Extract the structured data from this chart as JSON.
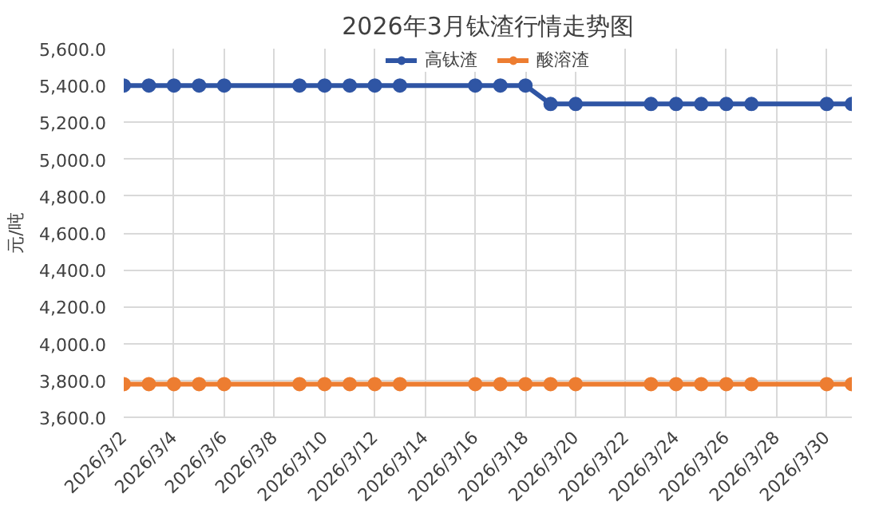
{
  "chart_data": {
    "type": "line",
    "title": "2026年3月钛渣行情走势图",
    "ylabel": "元/吨",
    "x": [
      "2026-03-02",
      "2026-03-03",
      "2026-03-04",
      "2026-03-05",
      "2026-03-06",
      "2026-03-09",
      "2026-03-10",
      "2026-03-11",
      "2026-03-12",
      "2026-03-13",
      "2026-03-16",
      "2026-03-17",
      "2026-03-18",
      "2026-03-19",
      "2026-03-20",
      "2026-03-23",
      "2026-03-24",
      "2026-03-25",
      "2026-03-26",
      "2026-03-27",
      "2026-03-30",
      "2026-03-31"
    ],
    "series": [
      {
        "name": "高钛渣",
        "color": "#2f55a4",
        "values": [
          5400,
          5400,
          5400,
          5400,
          5400,
          5400,
          5400,
          5400,
          5400,
          5400,
          5400,
          5400,
          5400,
          5300,
          5300,
          5300,
          5300,
          5300,
          5300,
          5300,
          5300,
          5300
        ]
      },
      {
        "name": "酸溶渣",
        "color": "#ed7d31",
        "values": [
          3780,
          3780,
          3780,
          3780,
          3780,
          3780,
          3780,
          3780,
          3780,
          3780,
          3780,
          3780,
          3780,
          3780,
          3780,
          3780,
          3780,
          3780,
          3780,
          3780,
          3780,
          3780
        ]
      }
    ],
    "xlim": [
      "2026-03-02",
      "2026-03-31"
    ],
    "xticks": [
      {
        "value": "2026-03-02",
        "label": "2026/3/2"
      },
      {
        "value": "2026-03-04",
        "label": "2026/3/4"
      },
      {
        "value": "2026-03-06",
        "label": "2026/3/6"
      },
      {
        "value": "2026-03-08",
        "label": "2026/3/8"
      },
      {
        "value": "2026-03-10",
        "label": "2026/3/10"
      },
      {
        "value": "2026-03-12",
        "label": "2026/3/12"
      },
      {
        "value": "2026-03-14",
        "label": "2026/3/14"
      },
      {
        "value": "2026-03-16",
        "label": "2026/3/16"
      },
      {
        "value": "2026-03-18",
        "label": "2026/3/18"
      },
      {
        "value": "2026-03-20",
        "label": "2026/3/20"
      },
      {
        "value": "2026-03-22",
        "label": "2026/3/22"
      },
      {
        "value": "2026-03-24",
        "label": "2026/3/24"
      },
      {
        "value": "2026-03-26",
        "label": "2026/3/26"
      },
      {
        "value": "2026-03-28",
        "label": "2026/3/28"
      },
      {
        "value": "2026-03-30",
        "label": "2026/3/30"
      }
    ],
    "ylim": [
      3600,
      5600
    ],
    "yticks": [
      {
        "value": 3600,
        "label": "3,600.0"
      },
      {
        "value": 3800,
        "label": "3,800.0"
      },
      {
        "value": 4000,
        "label": "4,000.0"
      },
      {
        "value": 4200,
        "label": "4,200.0"
      },
      {
        "value": 4400,
        "label": "4,400.0"
      },
      {
        "value": 4600,
        "label": "4,600.0"
      },
      {
        "value": 4800,
        "label": "4,800.0"
      },
      {
        "value": 5000,
        "label": "5,000.0"
      },
      {
        "value": 5200,
        "label": "5,200.0"
      },
      {
        "value": 5400,
        "label": "5,400.0"
      },
      {
        "value": 5600,
        "label": "5,600.0"
      }
    ],
    "grid": true,
    "legend": "top",
    "marker": "circle",
    "line_style": "solid"
  }
}
